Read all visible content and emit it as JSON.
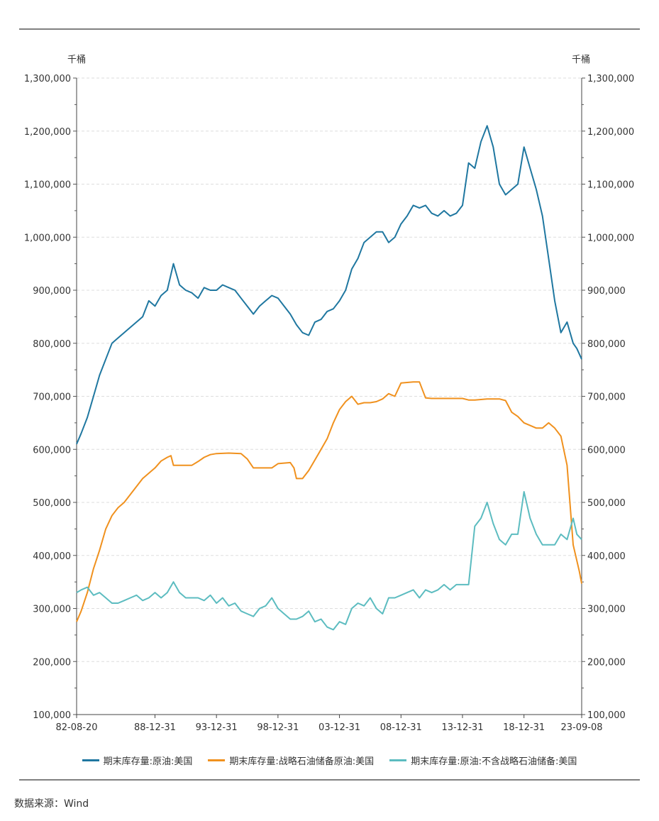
{
  "chart_data": {
    "type": "line",
    "unit_left": "千桶",
    "unit_right": "千桶",
    "ylim": [
      100000,
      1300000
    ],
    "y_ticks": [
      "1,300,000",
      "1,200,000",
      "1,100,000",
      "1,000,000",
      "900,000",
      "800,000",
      "700,000",
      "600,000",
      "500,000",
      "400,000",
      "300,000",
      "200,000",
      "100,000"
    ],
    "y_tick_values": [
      1300000,
      1200000,
      1100000,
      1000000,
      900000,
      800000,
      700000,
      600000,
      500000,
      400000,
      300000,
      200000,
      100000
    ],
    "x_start": 1982.63,
    "x_end": 2023.69,
    "x_ticks": [
      {
        "label": "82-08-20",
        "x": 1982.63
      },
      {
        "label": "88-12-31",
        "x": 1989.0
      },
      {
        "label": "93-12-31",
        "x": 1994.0
      },
      {
        "label": "98-12-31",
        "x": 1999.0
      },
      {
        "label": "03-12-31",
        "x": 2004.0
      },
      {
        "label": "08-12-31",
        "x": 2009.0
      },
      {
        "label": "13-12-31",
        "x": 2014.0
      },
      {
        "label": "18-12-31",
        "x": 2019.0
      },
      {
        "label": "23-09-08",
        "x": 2023.69
      }
    ],
    "series": [
      {
        "name": "期末库存量:原油:美国",
        "color": "#1f77a0",
        "x": [
          1982.63,
          1983.0,
          1983.5,
          1984.0,
          1984.5,
          1985.0,
          1985.5,
          1986.0,
          1986.5,
          1987.0,
          1987.5,
          1988.0,
          1988.5,
          1989.0,
          1989.5,
          1990.0,
          1990.5,
          1991.0,
          1991.5,
          1992.0,
          1992.5,
          1993.0,
          1993.5,
          1994.0,
          1994.5,
          1995.0,
          1995.5,
          1996.0,
          1996.5,
          1997.0,
          1997.5,
          1998.0,
          1998.5,
          1999.0,
          1999.5,
          2000.0,
          2000.5,
          2001.0,
          2001.5,
          2002.0,
          2002.5,
          2003.0,
          2003.5,
          2004.0,
          2004.5,
          2005.0,
          2005.5,
          2006.0,
          2006.5,
          2007.0,
          2007.5,
          2008.0,
          2008.5,
          2009.0,
          2009.5,
          2010.0,
          2010.5,
          2011.0,
          2011.5,
          2012.0,
          2012.5,
          2013.0,
          2013.5,
          2014.0,
          2014.5,
          2015.0,
          2015.5,
          2016.0,
          2016.5,
          2017.0,
          2017.5,
          2018.0,
          2018.5,
          2019.0,
          2019.5,
          2020.0,
          2020.5,
          2021.0,
          2021.5,
          2022.0,
          2022.5,
          2023.0,
          2023.3,
          2023.69
        ],
        "values": [
          610000,
          630000,
          660000,
          700000,
          740000,
          770000,
          800000,
          810000,
          820000,
          830000,
          840000,
          850000,
          880000,
          870000,
          890000,
          900000,
          950000,
          910000,
          900000,
          895000,
          885000,
          905000,
          900000,
          900000,
          910000,
          905000,
          900000,
          885000,
          870000,
          855000,
          870000,
          880000,
          890000,
          885000,
          870000,
          855000,
          835000,
          820000,
          815000,
          840000,
          845000,
          860000,
          865000,
          880000,
          900000,
          940000,
          960000,
          990000,
          1000000,
          1010000,
          1010000,
          990000,
          1000000,
          1025000,
          1040000,
          1060000,
          1055000,
          1060000,
          1045000,
          1040000,
          1050000,
          1040000,
          1045000,
          1060000,
          1140000,
          1130000,
          1180000,
          1210000,
          1170000,
          1100000,
          1080000,
          1090000,
          1100000,
          1170000,
          1130000,
          1090000,
          1040000,
          960000,
          880000,
          820000,
          840000,
          800000,
          790000,
          770000
        ]
      },
      {
        "name": "期末库存量:战略石油储备原油:美国",
        "color": "#f0911e",
        "x": [
          1982.63,
          1983.0,
          1983.5,
          1984.0,
          1984.5,
          1985.0,
          1985.5,
          1986.0,
          1986.5,
          1987.0,
          1987.5,
          1988.0,
          1988.5,
          1989.0,
          1989.5,
          1990.0,
          1990.3,
          1990.5,
          1991.0,
          1992.0,
          1992.5,
          1993.0,
          1993.5,
          1994.0,
          1995.0,
          1996.0,
          1996.5,
          1997.0,
          1998.0,
          1998.5,
          1999.0,
          2000.0,
          2000.3,
          2000.5,
          2001.0,
          2001.5,
          2002.0,
          2002.5,
          2003.0,
          2003.5,
          2004.0,
          2004.5,
          2005.0,
          2005.5,
          2006.0,
          2006.5,
          2007.0,
          2007.5,
          2008.0,
          2008.5,
          2009.0,
          2010.0,
          2010.5,
          2011.0,
          2011.5,
          2012.0,
          2013.0,
          2014.0,
          2014.5,
          2015.0,
          2016.0,
          2017.0,
          2017.5,
          2018.0,
          2018.5,
          2019.0,
          2019.5,
          2020.0,
          2020.5,
          2021.0,
          2021.5,
          2022.0,
          2022.5,
          2023.0,
          2023.5,
          2023.69
        ],
        "values": [
          275000,
          295000,
          330000,
          375000,
          410000,
          450000,
          475000,
          490000,
          500000,
          515000,
          530000,
          545000,
          555000,
          565000,
          578000,
          585000,
          588000,
          570000,
          570000,
          570000,
          577000,
          585000,
          590000,
          592000,
          593000,
          592000,
          582000,
          565000,
          565000,
          565000,
          573000,
          575000,
          565000,
          545000,
          545000,
          560000,
          580000,
          600000,
          620000,
          650000,
          675000,
          690000,
          700000,
          685000,
          688000,
          688000,
          690000,
          695000,
          705000,
          700000,
          725000,
          727000,
          727000,
          697000,
          696000,
          696000,
          696000,
          696000,
          693000,
          693000,
          695000,
          695000,
          692000,
          670000,
          662000,
          650000,
          645000,
          640000,
          640000,
          650000,
          640000,
          625000,
          570000,
          420000,
          370000,
          347000
        ]
      },
      {
        "name": "期末库存量:原油:不含战略石油储备:美国",
        "color": "#5cbcc0",
        "x": [
          1982.63,
          1983.0,
          1983.5,
          1984.0,
          1984.5,
          1985.0,
          1985.5,
          1986.0,
          1986.5,
          1987.0,
          1987.5,
          1988.0,
          1988.5,
          1989.0,
          1989.5,
          1990.0,
          1990.5,
          1991.0,
          1991.5,
          1992.0,
          1992.5,
          1993.0,
          1993.5,
          1994.0,
          1994.5,
          1995.0,
          1995.5,
          1996.0,
          1996.5,
          1997.0,
          1997.5,
          1998.0,
          1998.5,
          1999.0,
          1999.5,
          2000.0,
          2000.5,
          2001.0,
          2001.5,
          2002.0,
          2002.5,
          2003.0,
          2003.5,
          2004.0,
          2004.5,
          2005.0,
          2005.5,
          2006.0,
          2006.5,
          2007.0,
          2007.5,
          2008.0,
          2008.5,
          2009.0,
          2009.5,
          2010.0,
          2010.5,
          2011.0,
          2011.5,
          2012.0,
          2012.5,
          2013.0,
          2013.5,
          2014.0,
          2014.5,
          2015.0,
          2015.5,
          2016.0,
          2016.5,
          2017.0,
          2017.5,
          2018.0,
          2018.5,
          2019.0,
          2019.5,
          2020.0,
          2020.5,
          2021.0,
          2021.5,
          2022.0,
          2022.5,
          2023.0,
          2023.3,
          2023.69
        ],
        "values": [
          330000,
          335000,
          340000,
          325000,
          330000,
          320000,
          310000,
          310000,
          315000,
          320000,
          325000,
          315000,
          320000,
          330000,
          320000,
          330000,
          350000,
          330000,
          320000,
          320000,
          320000,
          315000,
          325000,
          310000,
          320000,
          305000,
          310000,
          295000,
          290000,
          285000,
          300000,
          305000,
          320000,
          300000,
          290000,
          280000,
          280000,
          285000,
          295000,
          275000,
          280000,
          265000,
          260000,
          275000,
          270000,
          300000,
          310000,
          305000,
          320000,
          300000,
          290000,
          320000,
          320000,
          325000,
          330000,
          335000,
          320000,
          335000,
          330000,
          335000,
          345000,
          335000,
          345000,
          345000,
          345000,
          455000,
          470000,
          500000,
          460000,
          430000,
          420000,
          440000,
          440000,
          520000,
          470000,
          440000,
          420000,
          420000,
          420000,
          440000,
          430000,
          470000,
          440000,
          430000
        ]
      }
    ]
  },
  "legend": [
    {
      "label": "期末库存量:原油:美国",
      "color": "#1f77a0"
    },
    {
      "label": "期末库存量:战略石油储备原油:美国",
      "color": "#f0911e"
    },
    {
      "label": "期末库存量:原油:不含战略石油储备:美国",
      "color": "#5cbcc0"
    }
  ],
  "source": "数据来源：Wind"
}
